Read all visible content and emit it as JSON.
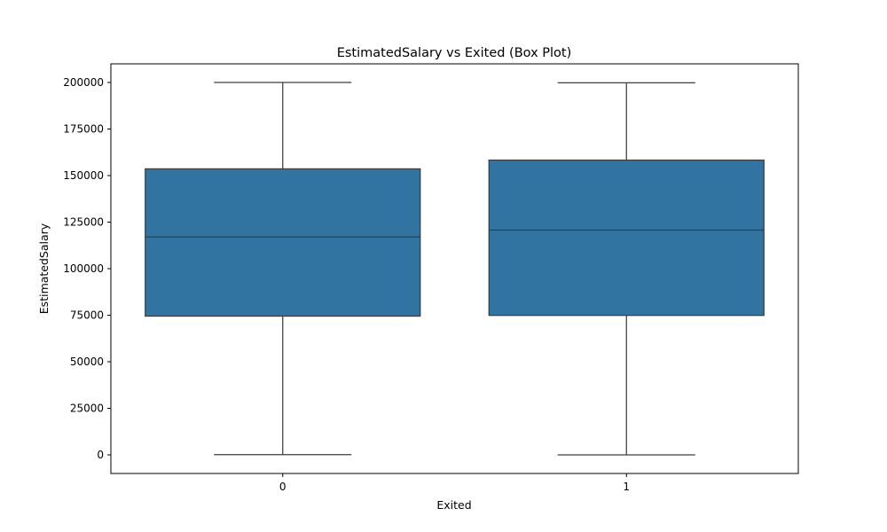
{
  "chart_data": {
    "type": "box",
    "title": "EstimatedSalary vs Exited (Box Plot)",
    "xlabel": "Exited",
    "ylabel": "EstimatedSalary",
    "categories": [
      "0",
      "1"
    ],
    "ylim": [
      -10000,
      210000
    ],
    "yticks": [
      0,
      25000,
      50000,
      75000,
      100000,
      125000,
      150000,
      175000,
      200000
    ],
    "ytick_labels": [
      "0",
      "25000",
      "50000",
      "75000",
      "100000",
      "125000",
      "150000",
      "175000",
      "200000"
    ],
    "boxes": [
      {
        "category": "0",
        "min": 90,
        "q1": 74500,
        "median": 117000,
        "q3": 153600,
        "max": 200000
      },
      {
        "category": "1",
        "min": 12,
        "q1": 74900,
        "median": 120700,
        "q3": 158300,
        "max": 199800
      }
    ],
    "grid": false,
    "colors": {
      "box_fill": "#3274a1",
      "box_edge": "#3d3d3d",
      "axes": "#000000"
    }
  }
}
